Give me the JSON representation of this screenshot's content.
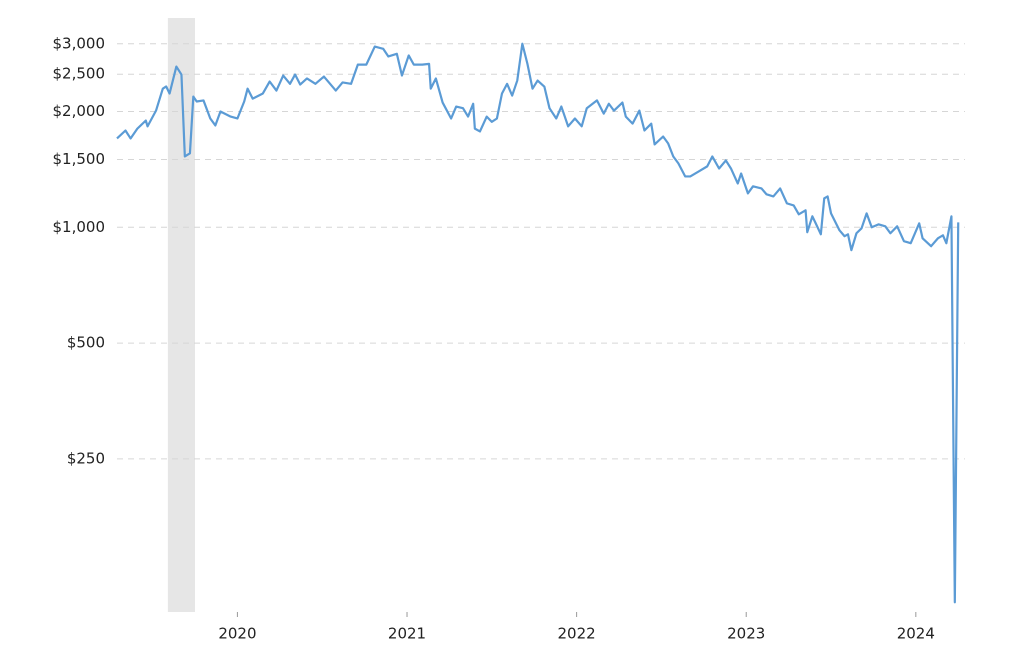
{
  "chart_data": {
    "type": "line",
    "log_scale": true,
    "grid": true,
    "color": "#5b9bd5",
    "shaded": [
      2019.59,
      2019.75
    ],
    "shaded_color": "#e6e6e6",
    "xlim": [
      2019.29,
      2024.29
    ],
    "xticks": [
      2020,
      2021,
      2022,
      2023,
      2024
    ],
    "ylim": [
      100,
      3500
    ],
    "yticks": [
      {
        "value": 250,
        "label": "$250"
      },
      {
        "value": 500,
        "label": "$500"
      },
      {
        "value": 1000,
        "label": "$1,000"
      },
      {
        "value": 1500,
        "label": "$1,500"
      },
      {
        "value": 2000,
        "label": "$2,000"
      },
      {
        "value": 2500,
        "label": "$2,500"
      },
      {
        "value": 3000,
        "label": "$3,000"
      }
    ],
    "x": [
      2019.29,
      2019.34,
      2019.37,
      2019.41,
      2019.46,
      2019.47,
      2019.52,
      2019.56,
      2019.58,
      2019.6,
      2019.64,
      2019.67,
      2019.69,
      2019.72,
      2019.74,
      2019.76,
      2019.8,
      2019.84,
      2019.87,
      2019.9,
      2019.96,
      2020.0,
      2020.04,
      2020.06,
      2020.09,
      2020.15,
      2020.19,
      2020.23,
      2020.27,
      2020.31,
      2020.34,
      2020.37,
      2020.41,
      2020.46,
      2020.51,
      2020.55,
      2020.58,
      2020.62,
      2020.67,
      2020.71,
      2020.76,
      2020.81,
      2020.86,
      2020.89,
      2020.94,
      2020.97,
      2021.01,
      2021.04,
      2021.09,
      2021.13,
      2021.14,
      2021.17,
      2021.21,
      2021.26,
      2021.29,
      2021.33,
      2021.36,
      2021.39,
      2021.4,
      2021.43,
      2021.47,
      2021.5,
      2021.53,
      2021.56,
      2021.59,
      2021.62,
      2021.65,
      2021.68,
      2021.71,
      2021.74,
      2021.77,
      2021.81,
      2021.84,
      2021.88,
      2021.91,
      2021.95,
      2021.99,
      2022.03,
      2022.06,
      2022.12,
      2022.16,
      2022.19,
      2022.22,
      2022.27,
      2022.29,
      2022.33,
      2022.37,
      2022.4,
      2022.44,
      2022.46,
      2022.51,
      2022.54,
      2022.57,
      2022.6,
      2022.64,
      2022.67,
      2022.72,
      2022.77,
      2022.8,
      2022.84,
      2022.88,
      2022.91,
      2022.95,
      2022.97,
      2023.01,
      2023.04,
      2023.09,
      2023.12,
      2023.16,
      2023.2,
      2023.24,
      2023.28,
      2023.31,
      2023.35,
      2023.36,
      2023.39,
      2023.41,
      2023.44,
      2023.46,
      2023.48,
      2023.5,
      2023.55,
      2023.58,
      2023.6,
      2023.62,
      2023.65,
      2023.68,
      2023.71,
      2023.74,
      2023.78,
      2023.82,
      2023.85,
      2023.89,
      2023.93,
      2023.97,
      2024.02,
      2024.04,
      2024.09,
      2024.13,
      2024.16,
      2024.18,
      2024.21,
      2024.23,
      2024.25
    ],
    "values": [
      1702,
      1785,
      1702,
      1805,
      1895,
      1830,
      2010,
      2293,
      2323,
      2228,
      2617,
      2495,
      1528,
      1557,
      2187,
      2123,
      2137,
      1918,
      1840,
      2000,
      1940,
      1918,
      2123,
      2293,
      2160,
      2228,
      2393,
      2267,
      2480,
      2360,
      2495,
      2350,
      2437,
      2360,
      2465,
      2350,
      2267,
      2380,
      2360,
      2648,
      2648,
      2950,
      2910,
      2780,
      2825,
      2480,
      2797,
      2648,
      2648,
      2660,
      2293,
      2437,
      2110,
      1918,
      2060,
      2040,
      1940,
      2095,
      1805,
      1775,
      1940,
      1880,
      1918,
      2228,
      2360,
      2200,
      2407,
      3000,
      2660,
      2293,
      2407,
      2320,
      2040,
      1918,
      2060,
      1830,
      1918,
      1830,
      2040,
      2137,
      1975,
      2095,
      2010,
      2110,
      1940,
      1860,
      2010,
      1785,
      1860,
      1642,
      1722,
      1651,
      1528,
      1466,
      1356,
      1356,
      1397,
      1440,
      1528,
      1422,
      1492,
      1422,
      1300,
      1380,
      1225,
      1278,
      1262,
      1218,
      1203,
      1262,
      1154,
      1140,
      1081,
      1107,
      971,
      1068,
      1024,
      959,
      1189,
      1203,
      1087,
      982,
      948,
      959,
      872,
      965,
      994,
      1087,
      1000,
      1018,
      1006,
      965,
      1006,
      920,
      909,
      1024,
      936,
      893,
      936,
      953,
      909,
      1068,
      106,
      1030
    ]
  }
}
